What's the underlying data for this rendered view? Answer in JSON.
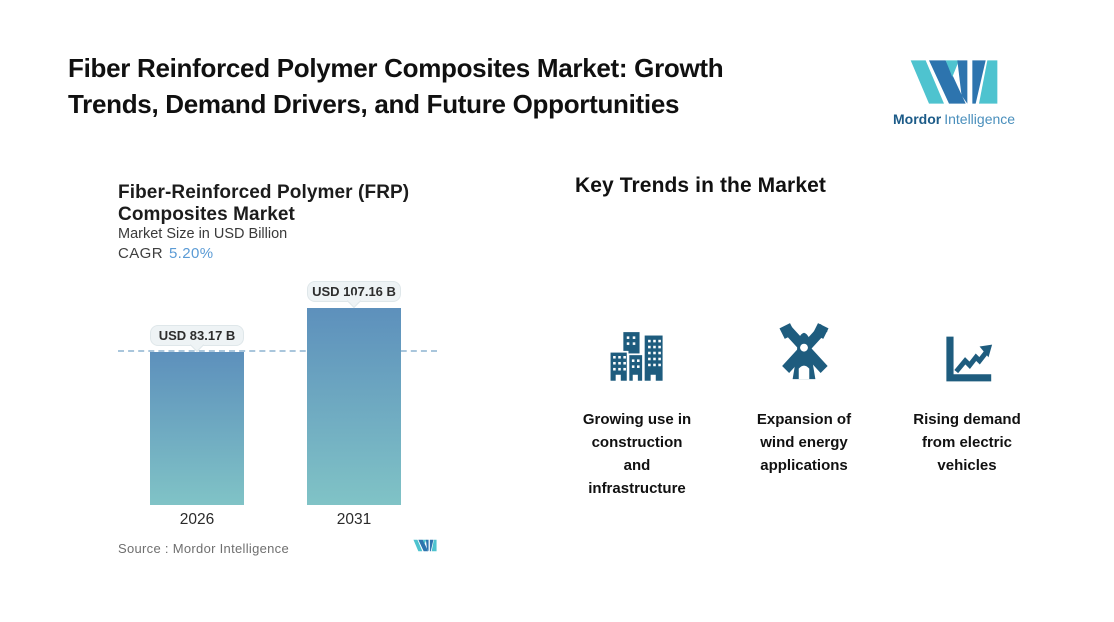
{
  "header": {
    "title_line1": "Fiber Reinforced Polymer Composites Market: Growth",
    "title_line2": "Trends, Demand Drivers, and Future Opportunities",
    "brand": {
      "name_primary": "Mordor",
      "name_secondary": "Intelligence"
    }
  },
  "chart": {
    "title_line1": "Fiber-Reinforced Polymer (FRP)",
    "title_line2": "Composites Market",
    "subtitle": "Market Size in USD Billion",
    "cagr_label": "CAGR",
    "cagr_value": "5.20%",
    "source_label": "Source :",
    "source_value": "Mordor Intelligence"
  },
  "trends": {
    "heading": "Key Trends in the Market",
    "items": [
      {
        "icon": "buildings-icon",
        "lines": [
          "Growing use in",
          "construction",
          "and",
          "infrastructure"
        ]
      },
      {
        "icon": "windmill-icon",
        "lines": [
          "Expansion of",
          "wind energy",
          "applications"
        ]
      },
      {
        "icon": "trend-chart-icon",
        "lines": [
          "Rising demand",
          "from electric",
          "vehicles"
        ]
      }
    ]
  },
  "colors": {
    "accent_teal": "#4ec3cf",
    "accent_blue": "#2d74ae",
    "icon_color": "#1e5c7e",
    "cagr_value_color": "#5b9bd5",
    "bar_gradient_top": "#5d90bc",
    "bar_gradient_bottom": "#80c3c6",
    "dashed_line_color": "#a9c6dc",
    "callout_bg": "#eef3f5"
  },
  "chart_data": {
    "type": "bar",
    "categories": [
      "2026",
      "2031"
    ],
    "values": [
      83.17,
      107.16
    ],
    "bar_labels": [
      "USD 83.17 B",
      "USD 107.16 B"
    ],
    "title": "Fiber-Reinforced Polymer (FRP) Composites Market",
    "subtitle": "Market Size in USD Billion",
    "cagr": "5.20%",
    "reference_line": 83.17,
    "source": "Mordor Intelligence",
    "legend": false,
    "grid": false
  }
}
